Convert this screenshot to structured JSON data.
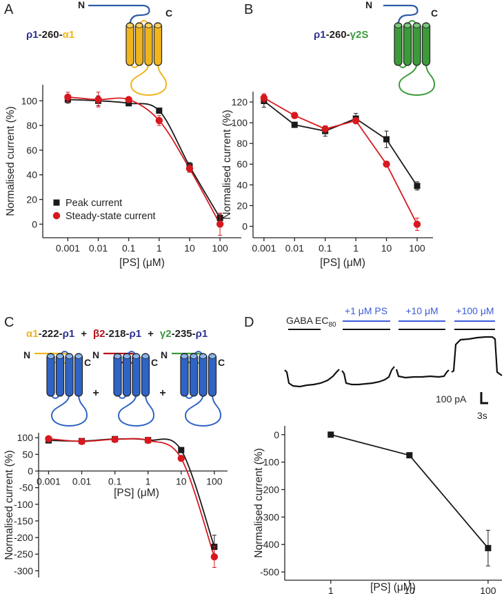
{
  "panel_labels": [
    "A",
    "B",
    "C",
    "D"
  ],
  "terminals": {
    "n": "N",
    "c": "C"
  },
  "plus": "+",
  "constructs": [
    [
      [
        {
          "text": "ρ1",
          "color": "#2e3192"
        },
        {
          "text": "-260-",
          "color": "#231f20"
        },
        {
          "text": "α1",
          "color": "#f2b51b"
        }
      ]
    ],
    [
      [
        {
          "text": "ρ1",
          "color": "#2e3192"
        },
        {
          "text": "-260-",
          "color": "#231f20"
        },
        {
          "text": "γ2S",
          "color": "#3a9a3f"
        }
      ]
    ],
    [
      [
        {
          "text": "α1",
          "color": "#f2b51b"
        },
        {
          "text": "-222-",
          "color": "#231f20"
        },
        {
          "text": "ρ1",
          "color": "#2e3192"
        }
      ],
      [
        {
          "text": "β2",
          "color": "#b5121b"
        },
        {
          "text": "-218-",
          "color": "#231f20"
        },
        {
          "text": "ρ1",
          "color": "#2e3192"
        }
      ],
      [
        {
          "text": "γ2",
          "color": "#3a9a3f"
        },
        {
          "text": "-235-",
          "color": "#231f20"
        },
        {
          "text": "ρ1",
          "color": "#2e3192"
        }
      ]
    ]
  ],
  "trace": {
    "baseline_label": {
      "text": "GABA EC",
      "sub": "80"
    },
    "drug_labels": [
      "+1 μM PS",
      "+10 μM",
      "+100 μM"
    ],
    "scale_current": "100 pA",
    "scale_time": "3s"
  },
  "chart_data": [
    {
      "type": "line",
      "line_style": "smooth",
      "xscale": "log",
      "xlabel": "[PS] (μM)",
      "ylabel": "Normalised current (%)",
      "x": [
        0.001,
        0.01,
        0.1,
        1,
        10,
        100
      ],
      "xlim": [
        0.00015,
        500
      ],
      "xticks": [
        0.001,
        0.01,
        0.1,
        1,
        10,
        100
      ],
      "ylim": [
        -11,
        113
      ],
      "yticks": [
        0,
        20,
        40,
        60,
        80,
        100
      ],
      "legend": "lower left",
      "series": [
        {
          "name": "Peak current",
          "color": "#1a1a1a",
          "marker": "square",
          "values": [
            101,
            100,
            98,
            92,
            47,
            5
          ],
          "errors": [
            3,
            4,
            2,
            2,
            3,
            3
          ]
        },
        {
          "name": "Steady-state current",
          "color": "#d7191f",
          "marker": "circle",
          "values": [
            103,
            101,
            101,
            84,
            45,
            0
          ],
          "errors": [
            4,
            6,
            2,
            4,
            3,
            9
          ]
        }
      ]
    },
    {
      "type": "line",
      "line_style": "straight",
      "xscale": "log",
      "xlabel": "[PS] (μM)",
      "ylabel": "Normalised current (%)",
      "x": [
        0.001,
        0.01,
        0.1,
        1,
        10,
        100
      ],
      "xlim": [
        0.00044,
        330
      ],
      "xticks": [
        0.001,
        0.01,
        0.1,
        1,
        10,
        100
      ],
      "ylim": [
        -11,
        130
      ],
      "yticks": [
        0,
        20,
        40,
        60,
        80,
        100,
        120
      ],
      "series": [
        {
          "color": "#1a1a1a",
          "marker": "square",
          "values": [
            121,
            98,
            92,
            104,
            84,
            39
          ],
          "errors": [
            6,
            2,
            5,
            5,
            8,
            4
          ]
        },
        {
          "color": "#d7191f",
          "marker": "circle",
          "values": [
            124,
            107,
            94,
            102,
            60,
            2
          ],
          "errors": [
            4,
            3,
            2,
            2,
            2,
            6
          ]
        }
      ]
    },
    {
      "type": "line",
      "line_style": "smooth",
      "xscale": "log",
      "xlabel": "[PS] (μM)",
      "ylabel": "Normalised current (%)",
      "x": [
        0.001,
        0.01,
        0.1,
        1,
        10,
        100
      ],
      "xlim": [
        0.0005,
        250
      ],
      "xticks": [
        0.001,
        0.01,
        0.1,
        1,
        10,
        100
      ],
      "ylim": [
        -320,
        115
      ],
      "yticks": [
        100,
        50,
        0,
        -50,
        -100,
        -150,
        -200,
        -250,
        -300
      ],
      "xaxis_cross": 0,
      "series": [
        {
          "color": "#1a1a1a",
          "marker": "square",
          "values": [
            92,
            90,
            96,
            93,
            63,
            -228
          ],
          "errors": [
            3,
            3,
            3,
            3,
            3,
            35
          ]
        },
        {
          "color": "#d7191f",
          "marker": "circle",
          "values": [
            97,
            89,
            95,
            92,
            38,
            -258
          ],
          "errors": [
            3,
            3,
            3,
            3,
            3,
            32
          ]
        }
      ]
    },
    {
      "type": "line",
      "line_style": "straight",
      "xscale": "log",
      "xlabel": "[PS] (μM)",
      "ylabel": "Normalised current (%)",
      "x": [
        1,
        10,
        100
      ],
      "xlim": [
        0.26,
        150
      ],
      "xticks": [
        1,
        10,
        100
      ],
      "ylim": [
        -530,
        32
      ],
      "yticks": [
        0,
        -100,
        -200,
        -300,
        -400,
        -500
      ],
      "series": [
        {
          "color": "#1a1a1a",
          "marker": "square",
          "values": [
            0,
            -75,
            -413
          ],
          "errors": [
            3,
            5,
            65
          ]
        }
      ]
    }
  ]
}
